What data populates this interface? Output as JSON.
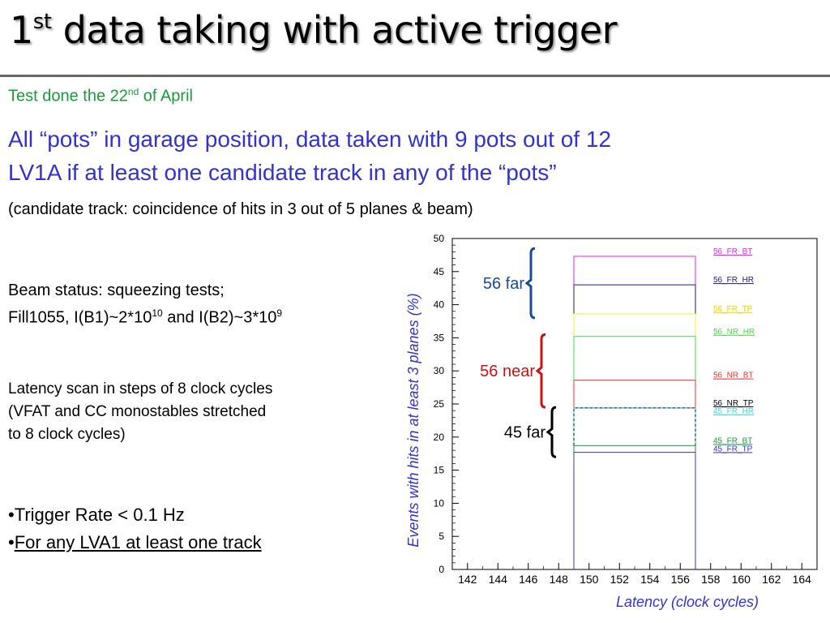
{
  "slide": {
    "title_main": "1",
    "title_sup": "st",
    "title_rest": " data taking with active trigger",
    "test_date_pre": "Test done the 22",
    "test_date_sup": "nd",
    "test_date_post": " of April",
    "line1": "All “pots” in garage position, data taken with 9 pots out of 12",
    "line2": "LV1A if at least one candidate track in any of the “pots”",
    "line3": "(candidate track: coincidence of hits in 3 out of 5 planes & beam)",
    "beam_status_line1": "Beam status: squeezing tests;",
    "beam_status_line2_a": "Fill1055, I(B1)~2*10",
    "beam_status_line2_sup1": "10",
    "beam_status_line2_b": " and I(B2)~3*10",
    "beam_status_line2_sup2": "9",
    "latency_line1": "Latency scan in steps of 8 clock cycles",
    "latency_line2": "(VFAT and CC monostables stretched",
    "latency_line3": "to 8 clock cycles)",
    "bullet1": "•Trigger Rate < 0.1 Hz",
    "bullet2_dot": "•",
    "bullet2_text": "For any LVA1 at least one track"
  },
  "chart_data": {
    "type": "line",
    "xlabel": "Latency  (clock cycles)",
    "ylabel": "Events with hits in at least 3 planes (%)",
    "xlim": [
      141,
      165
    ],
    "ylim": [
      0,
      50
    ],
    "x_ticks": [
      142,
      144,
      146,
      148,
      150,
      152,
      154,
      156,
      158,
      160,
      162,
      164
    ],
    "y_ticks": [
      0,
      5,
      10,
      15,
      20,
      25,
      30,
      35,
      40,
      45,
      50
    ],
    "x_range": [
      149,
      157
    ],
    "series": [
      {
        "name": "56_FR_BT",
        "value": 47.3,
        "color": "#ee22ee",
        "dashed": false
      },
      {
        "name": "56_FR_HR",
        "value": 43.0,
        "color": "#1a1a8a",
        "dashed": false
      },
      {
        "name": "56_FR_TP",
        "value": 38.6,
        "color": "#f2f22a",
        "dashed": false
      },
      {
        "name": "56_NR_HR",
        "value": 35.2,
        "color": "#4ed44e",
        "dashed": false
      },
      {
        "name": "56_NR_BT",
        "value": 28.6,
        "color": "#ee3333",
        "dashed": false
      },
      {
        "name": "56_NR_TP",
        "value": 24.4,
        "color": "#000000",
        "dashed": false
      },
      {
        "name": "45_FR_HR",
        "value": 24.4,
        "color": "#33dddd",
        "dashed": true
      },
      {
        "name": "45_FR_BT",
        "value": 18.7,
        "color": "#1a9a3a",
        "dashed": false
      },
      {
        "name": "45_FR_TP",
        "value": 17.7,
        "color": "#3333cc",
        "dashed": false
      }
    ],
    "groups": [
      {
        "label": "56 far",
        "color": "#1a4aa0",
        "y_range": [
          38,
          48.5
        ]
      },
      {
        "label": "56 near",
        "color": "#cc1111",
        "y_range": [
          24.5,
          35.5
        ]
      },
      {
        "label": "45 far",
        "color": "#000000",
        "y_range": [
          17,
          24.5
        ]
      }
    ]
  }
}
